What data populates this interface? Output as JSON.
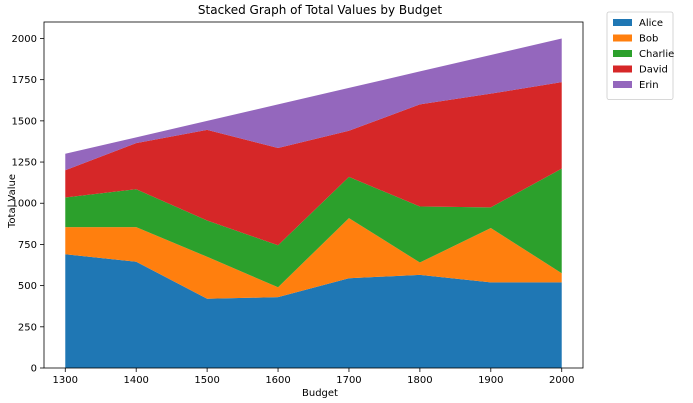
{
  "chart_data": {
    "type": "area",
    "stacked": true,
    "title": "Stacked Graph of Total Values by Budget",
    "xlabel": "Budget",
    "ylabel": "Total Value",
    "x": [
      1300,
      1400,
      1500,
      1600,
      1700,
      1800,
      1900,
      2000
    ],
    "xlim": [
      1270,
      2030
    ],
    "ylim": [
      0,
      2100
    ],
    "xticks": [
      1300,
      1400,
      1500,
      1600,
      1700,
      1800,
      1900,
      2000
    ],
    "yticks": [
      0,
      250,
      500,
      750,
      1000,
      1250,
      1500,
      1750,
      2000
    ],
    "legend_position": "outside-top-right",
    "grid": false,
    "series": [
      {
        "name": "Alice",
        "color": "#1f77b4",
        "values": [
          690,
          645,
          420,
          430,
          545,
          565,
          520,
          520
        ]
      },
      {
        "name": "Bob",
        "color": "#ff7f0e",
        "values": [
          165,
          210,
          255,
          60,
          365,
          75,
          330,
          55
        ]
      },
      {
        "name": "Charlie",
        "color": "#2ca02c",
        "values": [
          180,
          230,
          220,
          255,
          250,
          340,
          125,
          635
        ]
      },
      {
        "name": "David",
        "color": "#d62728",
        "values": [
          165,
          280,
          550,
          590,
          280,
          620,
          690,
          525
        ]
      },
      {
        "name": "Erin",
        "color": "#9467bd",
        "values": [
          100,
          35,
          55,
          265,
          260,
          200,
          235,
          265
        ]
      }
    ]
  }
}
